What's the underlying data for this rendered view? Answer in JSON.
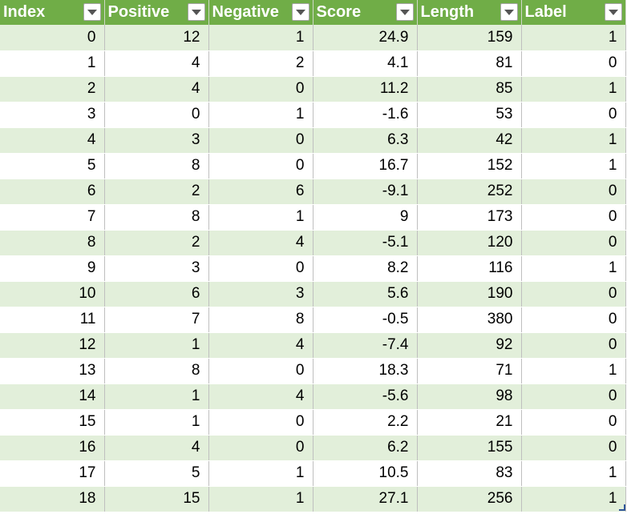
{
  "table": {
    "columns": [
      {
        "label": "Index"
      },
      {
        "label": "Positive"
      },
      {
        "label": "Negative"
      },
      {
        "label": "Score"
      },
      {
        "label": "Length"
      },
      {
        "label": "Label"
      }
    ],
    "rows": [
      [
        "0",
        "12",
        "1",
        "24.9",
        "159",
        "1"
      ],
      [
        "1",
        "4",
        "2",
        "4.1",
        "81",
        "0"
      ],
      [
        "2",
        "4",
        "0",
        "11.2",
        "85",
        "1"
      ],
      [
        "3",
        "0",
        "1",
        "-1.6",
        "53",
        "0"
      ],
      [
        "4",
        "3",
        "0",
        "6.3",
        "42",
        "1"
      ],
      [
        "5",
        "8",
        "0",
        "16.7",
        "152",
        "1"
      ],
      [
        "6",
        "2",
        "6",
        "-9.1",
        "252",
        "0"
      ],
      [
        "7",
        "8",
        "1",
        "9",
        "173",
        "0"
      ],
      [
        "8",
        "2",
        "4",
        "-5.1",
        "120",
        "0"
      ],
      [
        "9",
        "3",
        "0",
        "8.2",
        "116",
        "1"
      ],
      [
        "10",
        "6",
        "3",
        "5.6",
        "190",
        "0"
      ],
      [
        "11",
        "7",
        "8",
        "-0.5",
        "380",
        "0"
      ],
      [
        "12",
        "1",
        "4",
        "-7.4",
        "92",
        "0"
      ],
      [
        "13",
        "8",
        "0",
        "18.3",
        "71",
        "1"
      ],
      [
        "14",
        "1",
        "4",
        "-5.6",
        "98",
        "0"
      ],
      [
        "15",
        "1",
        "0",
        "2.2",
        "21",
        "0"
      ],
      [
        "16",
        "4",
        "0",
        "6.2",
        "155",
        "0"
      ],
      [
        "17",
        "5",
        "1",
        "10.5",
        "83",
        "1"
      ],
      [
        "18",
        "15",
        "1",
        "27.1",
        "256",
        "1"
      ]
    ]
  },
  "colors": {
    "header_bg": "#70ad47",
    "band_bg": "#e2efda",
    "header_text": "#ffffff"
  },
  "icons": {
    "filter": "chevron-down-icon"
  }
}
